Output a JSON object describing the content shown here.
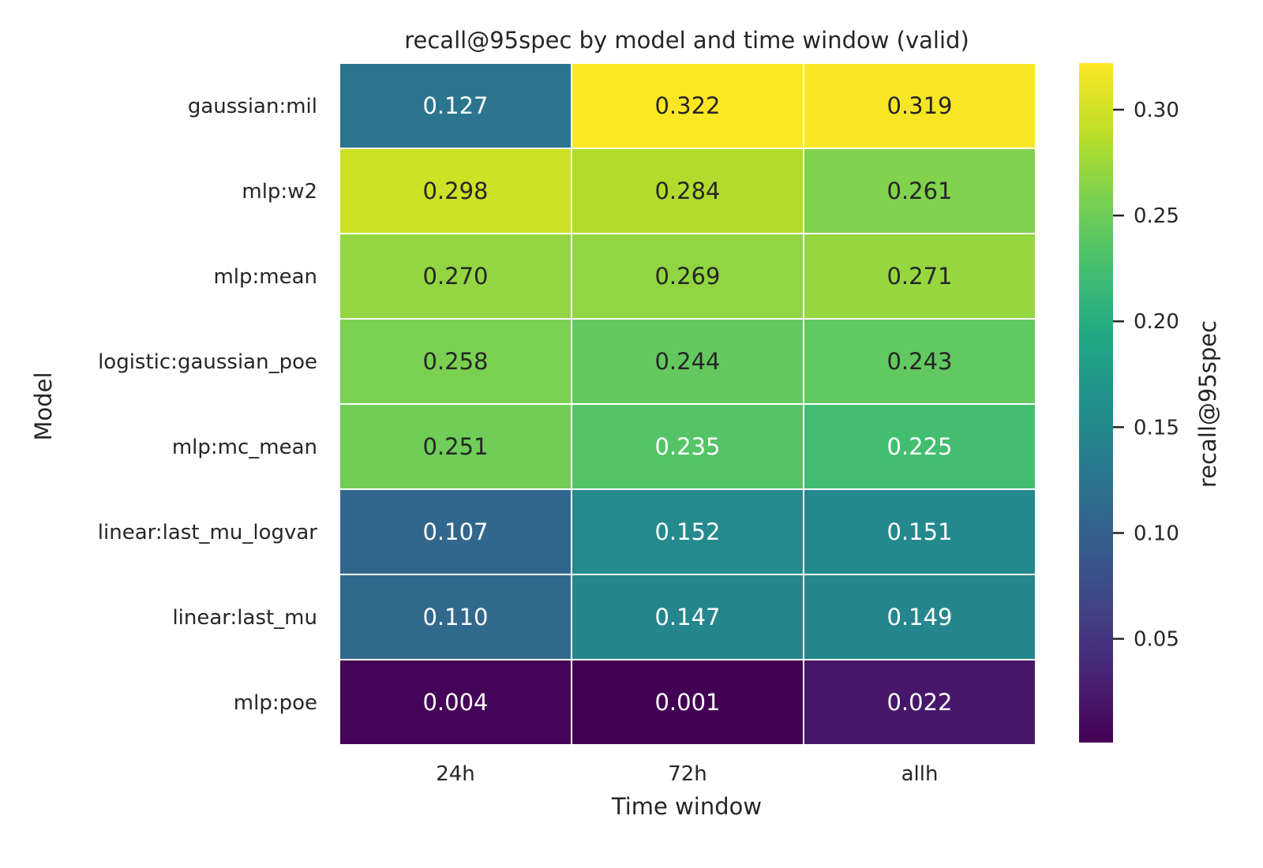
{
  "chart_data": {
    "type": "heatmap",
    "title": "recall@95spec by model and time window (valid)",
    "xlabel": "Time window",
    "ylabel": "Model",
    "x_categories": [
      "24h",
      "72h",
      "allh"
    ],
    "y_categories": [
      "gaussian:mil",
      "mlp:w2",
      "mlp:mean",
      "logistic:gaussian_poe",
      "mlp:mc_mean",
      "linear:last_mu_logvar",
      "linear:last_mu",
      "mlp:poe"
    ],
    "values": [
      [
        0.127,
        0.322,
        0.319
      ],
      [
        0.298,
        0.284,
        0.261
      ],
      [
        0.27,
        0.269,
        0.271
      ],
      [
        0.258,
        0.244,
        0.243
      ],
      [
        0.251,
        0.235,
        0.225
      ],
      [
        0.107,
        0.152,
        0.151
      ],
      [
        0.11,
        0.147,
        0.149
      ],
      [
        0.004,
        0.001,
        0.022
      ]
    ],
    "value_labels": [
      [
        "0.127",
        "0.322",
        "0.319"
      ],
      [
        "0.298",
        "0.284",
        "0.261"
      ],
      [
        "0.270",
        "0.269",
        "0.271"
      ],
      [
        "0.258",
        "0.244",
        "0.243"
      ],
      [
        "0.251",
        "0.235",
        "0.225"
      ],
      [
        "0.107",
        "0.152",
        "0.151"
      ],
      [
        "0.110",
        "0.147",
        "0.149"
      ],
      [
        "0.004",
        "0.001",
        "0.022"
      ]
    ],
    "colormap": "viridis",
    "colorbar": {
      "label": "recall@95spec",
      "range": [
        0.001,
        0.322
      ],
      "ticks": [
        0.05,
        0.1,
        0.15,
        0.2,
        0.25,
        0.3
      ],
      "tick_labels": [
        "0.05",
        "0.10",
        "0.15",
        "0.20",
        "0.25",
        "0.30"
      ]
    },
    "text_colors": {
      "dark": "#262626",
      "light": "#ffffff"
    },
    "grid": false,
    "cell_border_color": "#ffffff"
  }
}
